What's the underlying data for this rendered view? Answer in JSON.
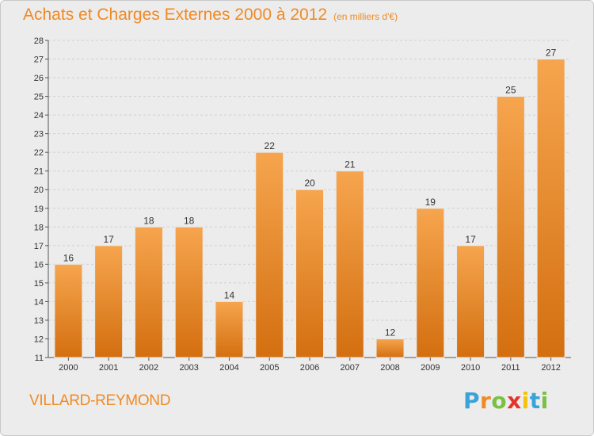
{
  "title": "Achats et Charges Externes 2000 à 2012",
  "subtitle": "(en milliers d'€)",
  "commune": "VILLARD-REYMOND",
  "logo": {
    "letters": [
      "P",
      "r",
      "o",
      "x",
      "i",
      "t",
      "i"
    ],
    "colors": [
      "#3aa3d8",
      "#f08a24",
      "#7ac043",
      "#e6332a",
      "#f4c20d",
      "#3aa3d8",
      "#7ac043"
    ]
  },
  "colors": {
    "bar": "#f08a24",
    "bar_light": "#f6a54e",
    "bar_dark": "#d36f10",
    "grid": "#cfcfcf"
  },
  "chart_data": {
    "type": "bar",
    "categories": [
      "2000",
      "2001",
      "2002",
      "2003",
      "2004",
      "2005",
      "2006",
      "2007",
      "2008",
      "2009",
      "2010",
      "2011",
      "2012"
    ],
    "values": [
      16,
      17,
      18,
      18,
      14,
      22,
      20,
      21,
      12,
      19,
      17,
      25,
      27
    ],
    "ylim": [
      11,
      28
    ],
    "yticks": [
      11,
      12,
      13,
      14,
      15,
      16,
      17,
      18,
      19,
      20,
      21,
      22,
      23,
      24,
      25,
      26,
      27,
      28
    ],
    "grid": true
  }
}
